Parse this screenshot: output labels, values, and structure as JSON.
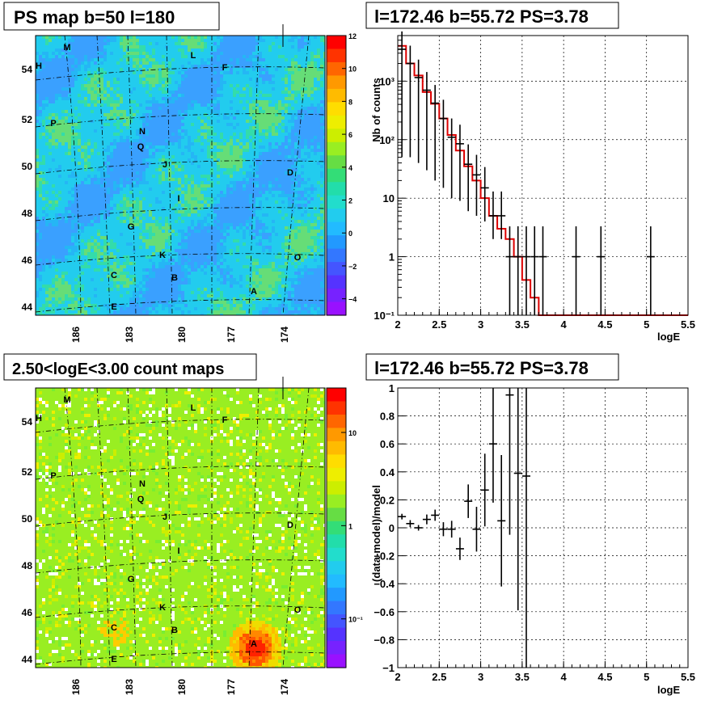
{
  "panels": {
    "ps_map": {
      "title": "PS map b=50 l=180",
      "lat_ticks": [
        "44",
        "46",
        "48",
        "50",
        "52",
        "54"
      ],
      "lon_ticks": [
        "186",
        "183",
        "180",
        "177",
        "174"
      ],
      "palette_ticks": [
        "12",
        "10",
        "8",
        "6",
        "4",
        "2",
        "0",
        "−2",
        "−4"
      ]
    },
    "count_map": {
      "title": "2.50<logE<3.00 count maps",
      "lat_ticks": [
        "44",
        "46",
        "48",
        "50",
        "52",
        "54"
      ],
      "lon_ticks": [
        "186",
        "183",
        "180",
        "177",
        "174"
      ],
      "palette_ticks": [
        "10",
        "1",
        "10⁻¹"
      ]
    },
    "spectrum": {
      "title": "l=172.46 b=55.72 PS=3.78"
    },
    "residual": {
      "title": "l=172.46 b=55.72 PS=3.78"
    }
  },
  "sources": [
    "A",
    "B",
    "C",
    "D",
    "E",
    "F",
    "G",
    "H",
    "I",
    "J",
    "K",
    "L",
    "M",
    "N",
    "O",
    "P",
    "Q"
  ],
  "chart_data": [
    {
      "type": "heatmap",
      "title": "PS map b=50 l=180",
      "xlabel": "",
      "ylabel": "",
      "lon_range": [
        188,
        172
      ],
      "lat_range": [
        43.6,
        55.4
      ],
      "z_range": [
        -5,
        12
      ],
      "colors": {
        "background": "#22ccee",
        "low": "#3399ff",
        "high": "#55dd77"
      }
    },
    {
      "type": "line",
      "title": "l=172.46 b=55.72 PS=3.78",
      "xlabel": "logE",
      "ylabel": "Nb of counts",
      "xlim": [
        2,
        5.5
      ],
      "ylim": [
        0.1,
        6000
      ],
      "log_y": true,
      "grid": true,
      "x_ticks": [
        "2",
        "2.5",
        "3",
        "3.5",
        "4",
        "4.5",
        "5",
        "5.5"
      ],
      "y_ticks": [
        "10⁻¹",
        "1",
        "10",
        "10²",
        "10³"
      ],
      "series": [
        {
          "style": "data-points",
          "color": "#000000",
          "x": [
            2.05,
            2.15,
            2.25,
            2.35,
            2.45,
            2.55,
            2.65,
            2.75,
            2.85,
            2.95,
            3.05,
            3.15,
            3.25,
            3.35,
            3.45,
            3.55,
            3.65,
            3.75,
            4.15,
            4.45,
            5.05
          ],
          "y": [
            3500,
            2000,
            1150,
            700,
            420,
            230,
            110,
            85,
            38,
            25,
            15,
            5,
            5,
            1,
            1,
            1,
            1,
            1,
            1,
            1,
            1
          ],
          "yerr_lo": [
            3450,
            1950,
            1110,
            670,
            400,
            215,
            100,
            76,
            32,
            20,
            11,
            3,
            3,
            0.9,
            0.9,
            0.9,
            0.9,
            0.9,
            0.9,
            0.9,
            0.9
          ],
          "yerr_hi": [
            3570,
            2040,
            1180,
            730,
            440,
            250,
            120,
            95,
            45,
            30,
            19,
            8,
            8,
            2.3,
            2.3,
            2.3,
            2.3,
            2.3,
            2.3,
            2.3,
            2.3
          ]
        },
        {
          "style": "histogram",
          "color": "#dd0000",
          "edges": [
            2.0,
            2.1,
            2.2,
            2.3,
            2.4,
            2.5,
            2.6,
            2.7,
            2.8,
            2.9,
            3.0,
            3.1,
            3.2,
            3.3,
            3.4,
            3.5,
            3.6,
            3.7,
            3.8,
            5.5
          ],
          "y": [
            4000,
            2000,
            1250,
            650,
            410,
            230,
            120,
            65,
            35,
            20,
            10,
            5,
            3,
            2,
            1,
            0.4,
            0.2,
            0.1,
            0.1
          ]
        }
      ]
    },
    {
      "type": "heatmap",
      "title": "2.50<logE<3.00 count maps",
      "lon_range": [
        188,
        172
      ],
      "lat_range": [
        43.6,
        55.4
      ],
      "z_range": [
        0.03,
        30
      ],
      "log_z": true,
      "colors": {
        "background": "#99ee22",
        "hot": "#ff2200",
        "empty": "#ffffff"
      }
    },
    {
      "type": "scatter",
      "title": "l=172.46 b=55.72 PS=3.78",
      "xlabel": "logE",
      "ylabel": "(data-model)/model",
      "xlim": [
        2,
        5.5
      ],
      "ylim": [
        -1,
        1
      ],
      "grid": true,
      "x_ticks": [
        "2",
        "2.5",
        "3",
        "3.5",
        "4",
        "4.5",
        "5",
        "5.5"
      ],
      "y_ticks": [
        "−1",
        "−0.8",
        "−0.6",
        "−0.4",
        "−0.2",
        "0",
        "0.2",
        "0.4",
        "0.6",
        "0.8",
        "1"
      ],
      "series": [
        {
          "color": "#000000",
          "x": [
            2.05,
            2.15,
            2.25,
            2.35,
            2.45,
            2.55,
            2.65,
            2.75,
            2.85,
            2.95,
            3.05,
            3.15,
            3.25,
            3.35,
            3.45,
            3.55
          ],
          "y": [
            0.08,
            0.03,
            0.0,
            0.06,
            0.09,
            -0.01,
            -0.01,
            -0.15,
            0.19,
            -0.01,
            0.27,
            0.6,
            0.05,
            0.95,
            0.39,
            0.37
          ],
          "yerr": [
            0.02,
            0.025,
            0.02,
            0.035,
            0.04,
            0.05,
            0.06,
            0.08,
            0.12,
            0.16,
            0.26,
            0.42,
            0.47,
            1.0,
            0.98,
            1.4
          ]
        }
      ]
    }
  ]
}
